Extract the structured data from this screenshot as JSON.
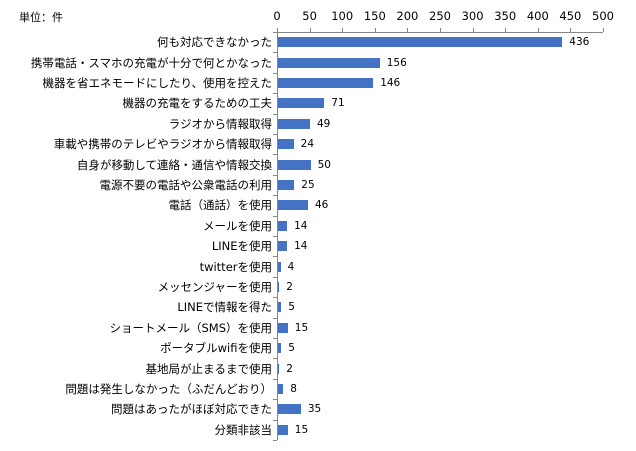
{
  "chart_data": {
    "type": "bar",
    "orientation": "horizontal",
    "title": "",
    "unit_label": "単位：件",
    "xlabel": "",
    "ylabel": "",
    "xlim": [
      0,
      500
    ],
    "x_ticks": [
      0,
      50,
      100,
      150,
      200,
      250,
      300,
      350,
      400,
      450,
      500
    ],
    "x_axis_position": "top",
    "grid": false,
    "legend": null,
    "bar_color": "#4472c4",
    "categories": [
      "何も対応できなかった",
      "携帯電話・スマホの充電が十分で何とかなった",
      "機器を省エネモードにしたり、使用を控えた",
      "機器の充電をするための工夫",
      "ラジオから情報取得",
      "車載や携帯のテレビやラジオから情報取得",
      "自身が移動して連絡・通信や情報交換",
      "電源不要の電話や公衆電話の利用",
      "電話（通話）を使用",
      "メールを使用",
      "LINEを使用",
      "twitterを使用",
      "メッセンジャーを使用",
      "LINEで情報を得た",
      "ショートメール（SMS）を使用",
      "ポータブルwifiを使用",
      "基地局が止まるまで使用",
      "問題は発生しなかった（ふだんどおり）",
      "問題はあったがほぼ対応できた",
      "分類非該当"
    ],
    "values": [
      436,
      156,
      146,
      71,
      49,
      24,
      50,
      25,
      46,
      14,
      14,
      4,
      2,
      5,
      15,
      5,
      2,
      8,
      35,
      15
    ]
  }
}
